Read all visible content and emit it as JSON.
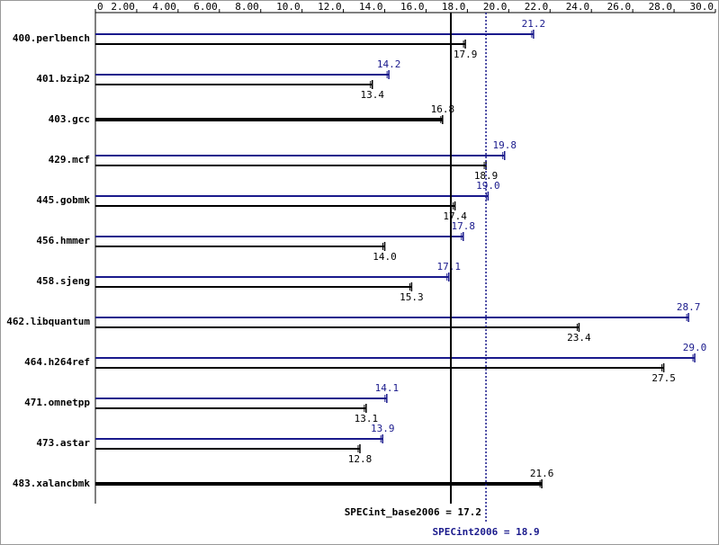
{
  "chart_data": {
    "type": "hbar-pair",
    "categories": [
      "400.perlbench",
      "401.bzip2",
      "403.gcc",
      "429.mcf",
      "445.gobmk",
      "456.hmmer",
      "458.sjeng",
      "462.libquantum",
      "464.h264ref",
      "471.omnetpp",
      "473.astar",
      "483.xalancbmk"
    ],
    "series": [
      {
        "color": "#1a1a8c",
        "values": [
          21.2,
          14.2,
          null,
          19.8,
          19.0,
          17.8,
          17.1,
          28.7,
          29.0,
          14.1,
          13.9,
          null
        ],
        "value_labels": [
          "21.2",
          "14.2",
          null,
          "19.8",
          "19.0",
          "17.8",
          "17.1",
          "28.7",
          "29.0",
          "14.1",
          "13.9",
          null
        ]
      },
      {
        "color": "#000000",
        "values": [
          17.9,
          13.4,
          16.8,
          18.9,
          17.4,
          14.0,
          15.3,
          23.4,
          27.5,
          13.1,
          12.8,
          21.6
        ],
        "value_labels": [
          "17.9",
          "13.4",
          "16.8",
          "18.9",
          "17.4",
          "14.0",
          "15.3",
          "23.4",
          "27.5",
          "13.1",
          "12.8",
          "21.6"
        ]
      }
    ],
    "xlim": [
      0,
      30
    ],
    "xticks": [
      0,
      {
        "value": 2,
        "label": "2.00"
      },
      {
        "value": 4,
        "label": "4.00"
      },
      {
        "value": 6,
        "label": "6.00"
      },
      {
        "value": 8,
        "label": "8.00"
      },
      {
        "value": 10,
        "label": "10.0"
      },
      {
        "value": 12,
        "label": "12.0"
      },
      {
        "value": 14,
        "label": "14.0"
      },
      {
        "value": 16,
        "label": "16.0"
      },
      {
        "value": 18,
        "label": "18.0"
      },
      {
        "value": 20,
        "label": "20.0"
      },
      {
        "value": 22,
        "label": "22.0"
      },
      {
        "value": 24,
        "label": "24.0"
      },
      {
        "value": 26,
        "label": "26.0"
      },
      {
        "value": 28,
        "label": "28.0"
      },
      {
        "value": 30,
        "label": "30.0"
      }
    ],
    "reference_lines": [
      {
        "value": 17.2,
        "label": "SPECint_base2006 = 17.2",
        "color": "#000000",
        "style": "solid"
      },
      {
        "value": 18.9,
        "label": "SPECint2006 = 18.9",
        "color": "#1a1a8c",
        "style": "dotted"
      }
    ]
  }
}
